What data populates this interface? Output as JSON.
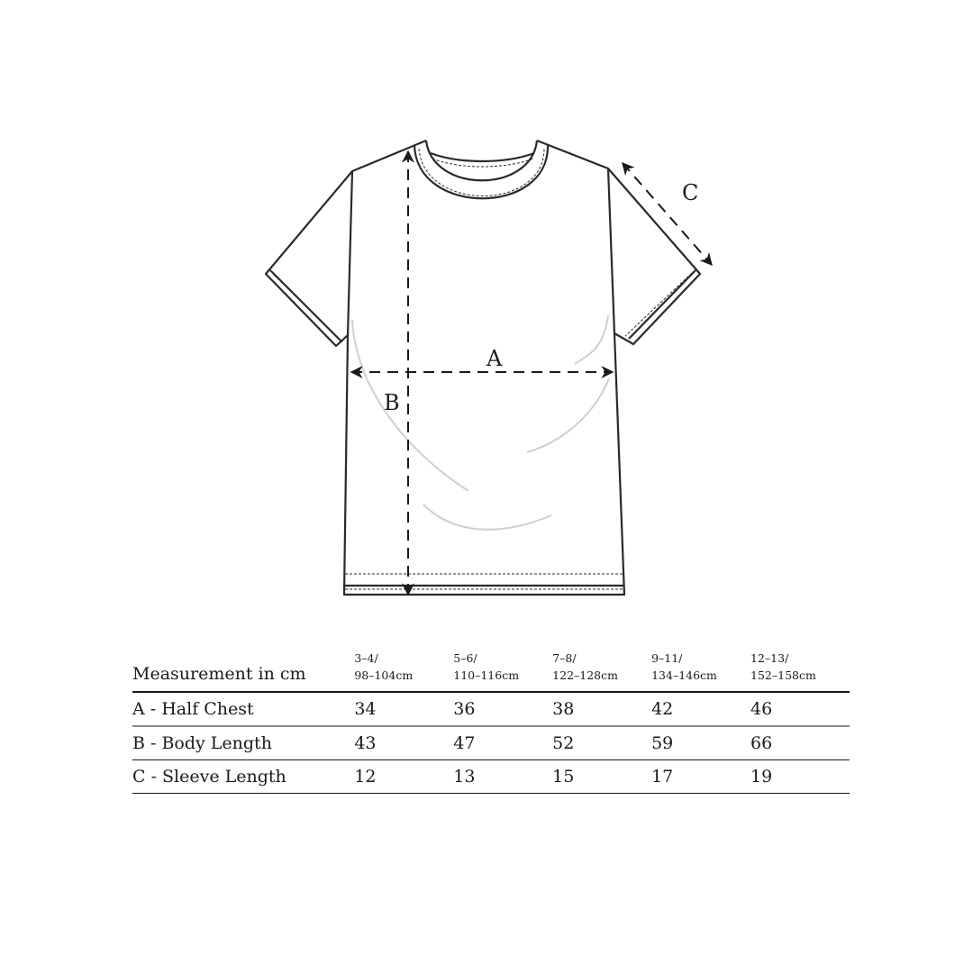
{
  "diagram": {
    "labels": {
      "a": "A",
      "b": "B",
      "c": "C"
    }
  },
  "table": {
    "header": "Measurement in cm",
    "sizes": [
      {
        "age": "3–4/",
        "height": "98–104cm"
      },
      {
        "age": "5–6/",
        "height": "110–116cm"
      },
      {
        "age": "7–8/",
        "height": "122–128cm"
      },
      {
        "age": "9–11/",
        "height": "134–146cm"
      },
      {
        "age": "12–13/",
        "height": "152–158cm"
      }
    ],
    "rows": [
      {
        "label": "A - Half Chest",
        "values": [
          "34",
          "36",
          "38",
          "42",
          "46"
        ]
      },
      {
        "label": "B - Body Length",
        "values": [
          "43",
          "47",
          "52",
          "59",
          "66"
        ]
      },
      {
        "label": "C - Sleeve Length",
        "values": [
          "12",
          "13",
          "15",
          "17",
          "19"
        ]
      }
    ]
  }
}
